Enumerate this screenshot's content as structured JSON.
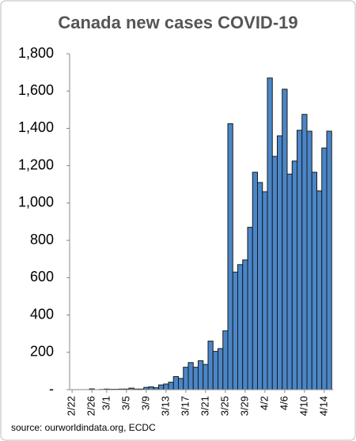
{
  "chart_data": {
    "type": "bar",
    "title": "Canada new cases COVID-19",
    "source": "source: ourworldindata.org, ECDC",
    "categories": [
      "2/22",
      null,
      null,
      null,
      "2/26",
      null,
      null,
      "3/1",
      null,
      null,
      null,
      "3/5",
      null,
      null,
      null,
      "3/9",
      null,
      null,
      null,
      "3/13",
      null,
      null,
      null,
      "3/17",
      null,
      null,
      null,
      "3/21",
      null,
      null,
      null,
      "3/25",
      null,
      null,
      null,
      "3/29",
      null,
      null,
      null,
      "4/2",
      null,
      null,
      null,
      "4/6",
      null,
      null,
      null,
      "4/10",
      null,
      null,
      null,
      "4/14",
      null
    ],
    "values": [
      0,
      0,
      0,
      0,
      4,
      0,
      1,
      3,
      2,
      2,
      3,
      3,
      8,
      3,
      3,
      12,
      15,
      10,
      25,
      30,
      40,
      70,
      60,
      120,
      145,
      120,
      155,
      135,
      260,
      205,
      220,
      315,
      1425,
      630,
      670,
      695,
      870,
      1165,
      1110,
      1060,
      1670,
      1250,
      1360,
      1610,
      1155,
      1225,
      1390,
      1475,
      1385,
      1165,
      1065,
      1295,
      1385
    ],
    "color": "#4a86c8",
    "ylim": [
      0,
      1800
    ],
    "yticks": [
      {
        "value": 0,
        "label": "-"
      },
      {
        "value": 200,
        "label": "200"
      },
      {
        "value": 400,
        "label": "400"
      },
      {
        "value": 600,
        "label": "600"
      },
      {
        "value": 800,
        "label": "800"
      },
      {
        "value": 1000,
        "label": "1,000"
      },
      {
        "value": 1200,
        "label": "1,200"
      },
      {
        "value": 1400,
        "label": "1,400"
      },
      {
        "value": 1600,
        "label": "1,600"
      },
      {
        "value": 1800,
        "label": "1,800"
      }
    ],
    "grid": false
  }
}
